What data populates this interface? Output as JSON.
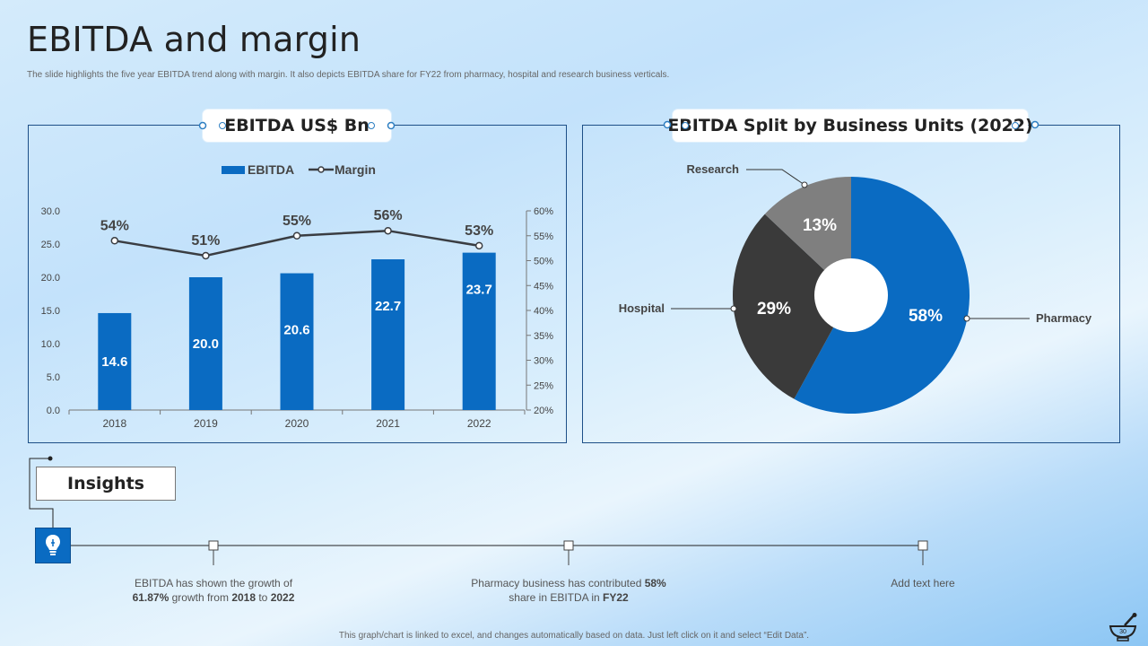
{
  "slide": {
    "title": "EBITDA and margin",
    "subtitle": "The slide highlights the five year EBITDA  trend along  with margin. It also depicts EBITDA  share for FY22 from pharmacy, hospital and research business verticals.",
    "footer": "This graph/chart is linked to excel, and changes automatically based on data. Just left click on it and select “Edit Data”.",
    "page_number": "30"
  },
  "colors": {
    "bar": "#0a6bc2",
    "line": "#3a3d42",
    "pharmacy": "#0a6bc2",
    "hospital": "#3a3a3a",
    "research": "#7f7f7f"
  },
  "left_panel": {
    "header": "EBITDA US$ Bn"
  },
  "right_panel": {
    "header": "EBITDA Split by Business Units (2022)"
  },
  "chart_data": [
    {
      "type": "bar",
      "title": "EBITDA US$ Bn",
      "categories": [
        "2018",
        "2019",
        "2020",
        "2021",
        "2022"
      ],
      "series": [
        {
          "name": "EBITDA",
          "type": "bar",
          "axis": "left",
          "values": [
            14.6,
            20.0,
            20.6,
            22.7,
            23.7
          ],
          "labels": [
            "14.6",
            "20.0",
            "20.6",
            "22.7",
            "23.7"
          ]
        },
        {
          "name": "Margin",
          "type": "line",
          "axis": "right",
          "values": [
            54,
            51,
            55,
            56,
            53
          ],
          "labels": [
            "54%",
            "51%",
            "55%",
            "56%",
            "53%"
          ]
        }
      ],
      "ylim": [
        0,
        30
      ],
      "yticks": [
        "0.0",
        "5.0",
        "10.0",
        "15.0",
        "20.0",
        "25.0",
        "30.0"
      ],
      "y2lim": [
        20,
        60
      ],
      "y2ticks": [
        "20%",
        "25%",
        "30%",
        "35%",
        "40%",
        "45%",
        "50%",
        "55%",
        "60%"
      ],
      "legend": [
        "EBITDA",
        "Margin"
      ],
      "legend_position": "top-center"
    },
    {
      "type": "pie",
      "title": "EBITDA Split by Business Units (2022)",
      "slices": [
        {
          "name": "Pharmacy",
          "value": 58,
          "label": "58%"
        },
        {
          "name": "Hospital",
          "value": 29,
          "label": "29%"
        },
        {
          "name": "Research",
          "value": 13,
          "label": "13%"
        }
      ],
      "donut": true
    }
  ],
  "insights": {
    "title": "Insights",
    "items": [
      {
        "line1": "EBITDA  has shown the growth of",
        "line2_bold1": "61.87%",
        "line2_mid": " growth from ",
        "line2_bold2": "2018",
        "line2_mid2": " to ",
        "line2_bold3": "2022"
      },
      {
        "line1_pre": "Pharmacy business has contributed  ",
        "line1_bold": "58%",
        "line2_pre": "share in EBITDA  in ",
        "line2_bold": "FY22"
      },
      {
        "text": "Add text here"
      }
    ]
  }
}
